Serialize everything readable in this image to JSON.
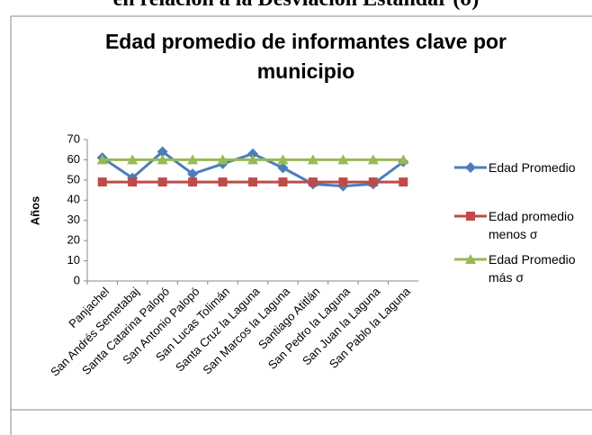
{
  "heading": "en relación a la Desviación Estándar (σ)",
  "chart_data": {
    "type": "line",
    "title": "Edad promedio de informantes clave  por municipio",
    "y_label": "Años",
    "categories": [
      "Panjachel",
      "San Andrés Semetabaj",
      "Santa Catarina Palopó",
      "San Antonio Palopó",
      "San Lucas Tolimán",
      "Santa Cruz la Laguna",
      "San Marcos la Laguna",
      "Santiago Atitlán",
      "San Pedro la Laguna",
      "San Juan la Laguna",
      "San Pablo la Laguna"
    ],
    "series": [
      {
        "name": "Edad Promedio",
        "color": "#4a7ebb",
        "marker": "diamond",
        "values": [
          61,
          51,
          64,
          53,
          58,
          63,
          56,
          48,
          47,
          48,
          59
        ]
      },
      {
        "name": "Edad promedio menos σ",
        "color": "#be4b48",
        "marker": "square",
        "values": [
          49,
          49,
          49,
          49,
          49,
          49,
          49,
          49,
          49,
          49,
          49
        ]
      },
      {
        "name": "Edad Promedio más σ",
        "color": "#98b954",
        "marker": "triangle",
        "values": [
          60,
          60,
          60,
          60,
          60,
          60,
          60,
          60,
          60,
          60,
          60
        ]
      }
    ],
    "ylim": [
      0,
      70
    ],
    "yticks": [
      0,
      10,
      20,
      30,
      40,
      50,
      60,
      70
    ],
    "grid": false,
    "legend": "right"
  }
}
